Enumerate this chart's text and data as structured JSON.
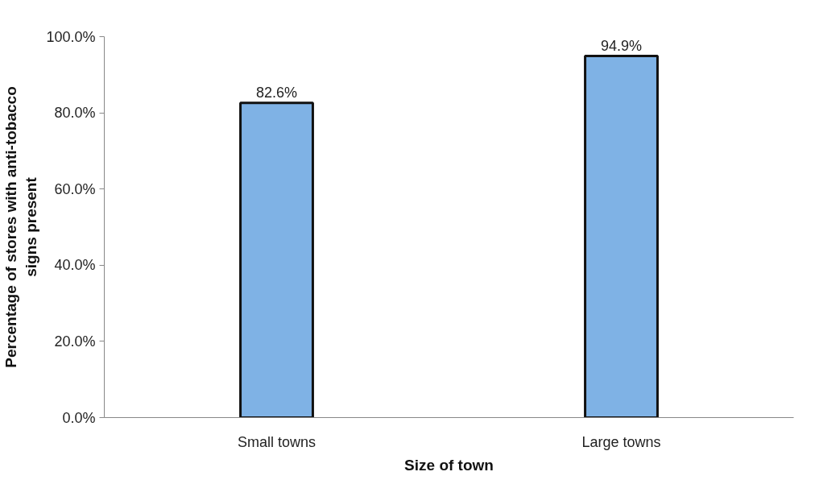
{
  "chart_data": {
    "type": "bar",
    "xlabel": "Size of town",
    "ylabel": "Percentage of stores with anti-tobacco signs present",
    "categories": [
      "Small towns",
      "Large towns"
    ],
    "values": [
      82.6,
      94.9
    ],
    "value_labels": [
      "82.6%",
      "94.9%"
    ],
    "color": "#7fb2e5",
    "ylim": [
      0,
      100
    ],
    "yticks": [
      {
        "value": 0,
        "label": "0.0%"
      },
      {
        "value": 20,
        "label": "20.0%"
      },
      {
        "value": 40,
        "label": "40.0%"
      },
      {
        "value": 60,
        "label": "60.0%"
      },
      {
        "value": 80,
        "label": "80.0%"
      },
      {
        "value": 100,
        "label": "100.0%"
      }
    ],
    "grid": false
  }
}
